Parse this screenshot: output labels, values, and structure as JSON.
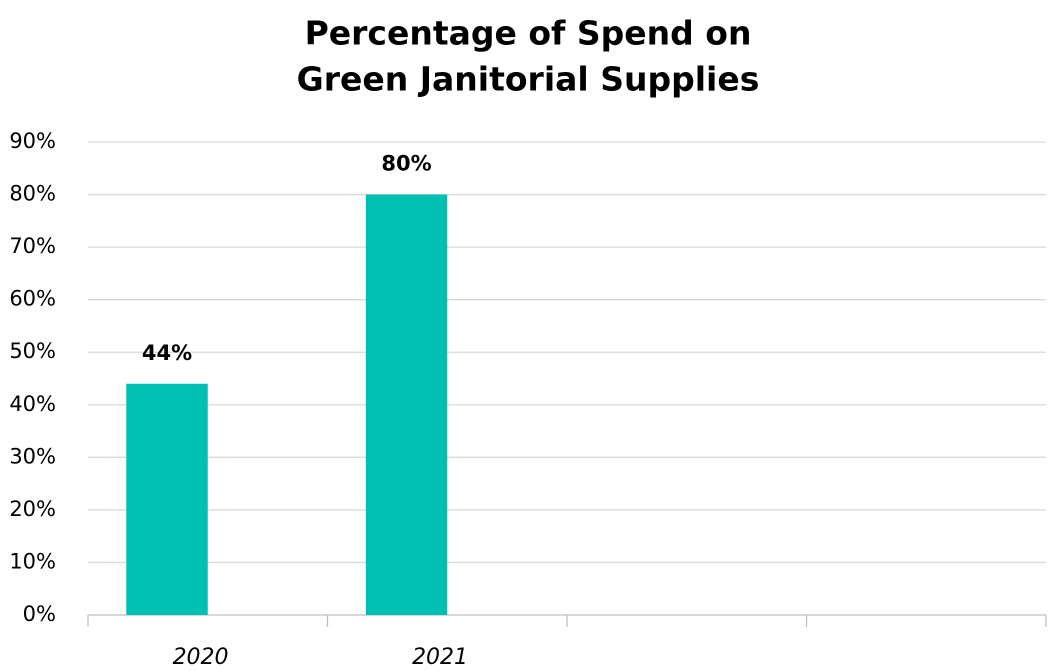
{
  "chart_data": {
    "type": "bar",
    "title": [
      "Percentage of Spend on",
      "Green Janitorial Supplies"
    ],
    "categories": [
      "2020",
      "2021",
      null,
      null
    ],
    "values": [
      44,
      80,
      null,
      null
    ],
    "value_labels": [
      "44%",
      "80%",
      null,
      null
    ],
    "color": "#00bfb3",
    "ylim": [
      0,
      90
    ],
    "yticks": [
      {
        "value": 0,
        "label": "0%"
      },
      {
        "value": 10,
        "label": "10%"
      },
      {
        "value": 20,
        "label": "20%"
      },
      {
        "value": 30,
        "label": "30%"
      },
      {
        "value": 40,
        "label": "40%"
      },
      {
        "value": 50,
        "label": "50%"
      },
      {
        "value": 60,
        "label": "60%"
      },
      {
        "value": 70,
        "label": "70%"
      },
      {
        "value": 80,
        "label": "80%"
      },
      {
        "value": 90,
        "label": "90%"
      }
    ],
    "grid": true
  }
}
